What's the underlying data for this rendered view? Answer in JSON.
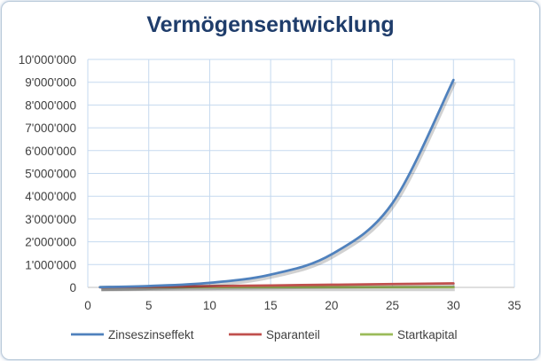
{
  "chart_data": {
    "type": "line",
    "title": "Vermögensentwicklung",
    "xlabel": "",
    "ylabel": "",
    "xlim": [
      0,
      35
    ],
    "ylim": [
      0,
      10000000
    ],
    "x_ticks": [
      "0",
      "5",
      "10",
      "15",
      "20",
      "25",
      "30",
      "35"
    ],
    "y_ticks": [
      "0",
      "1'000'000",
      "2'000'000",
      "3'000'000",
      "4'000'000",
      "5'000'000",
      "6'000'000",
      "7'000'000",
      "8'000'000",
      "9'000'000",
      "10'000'000"
    ],
    "grid": true,
    "legend_position": "bottom",
    "x": [
      1,
      5,
      10,
      15,
      20,
      25,
      30
    ],
    "series": [
      {
        "name": "Zinseszinseffekt",
        "color": "#4f81bd",
        "values": [
          10000,
          60000,
          200000,
          560000,
          1450000,
          3700000,
          9100000
        ]
      },
      {
        "name": "Sparanteil",
        "color": "#c0504d",
        "values": [
          5000,
          25000,
          55000,
          85000,
          115000,
          145000,
          175000
        ]
      },
      {
        "name": "Startkapital",
        "color": "#9bbb59",
        "values": [
          10000,
          10000,
          10000,
          10000,
          10000,
          10000,
          10000
        ]
      }
    ]
  }
}
